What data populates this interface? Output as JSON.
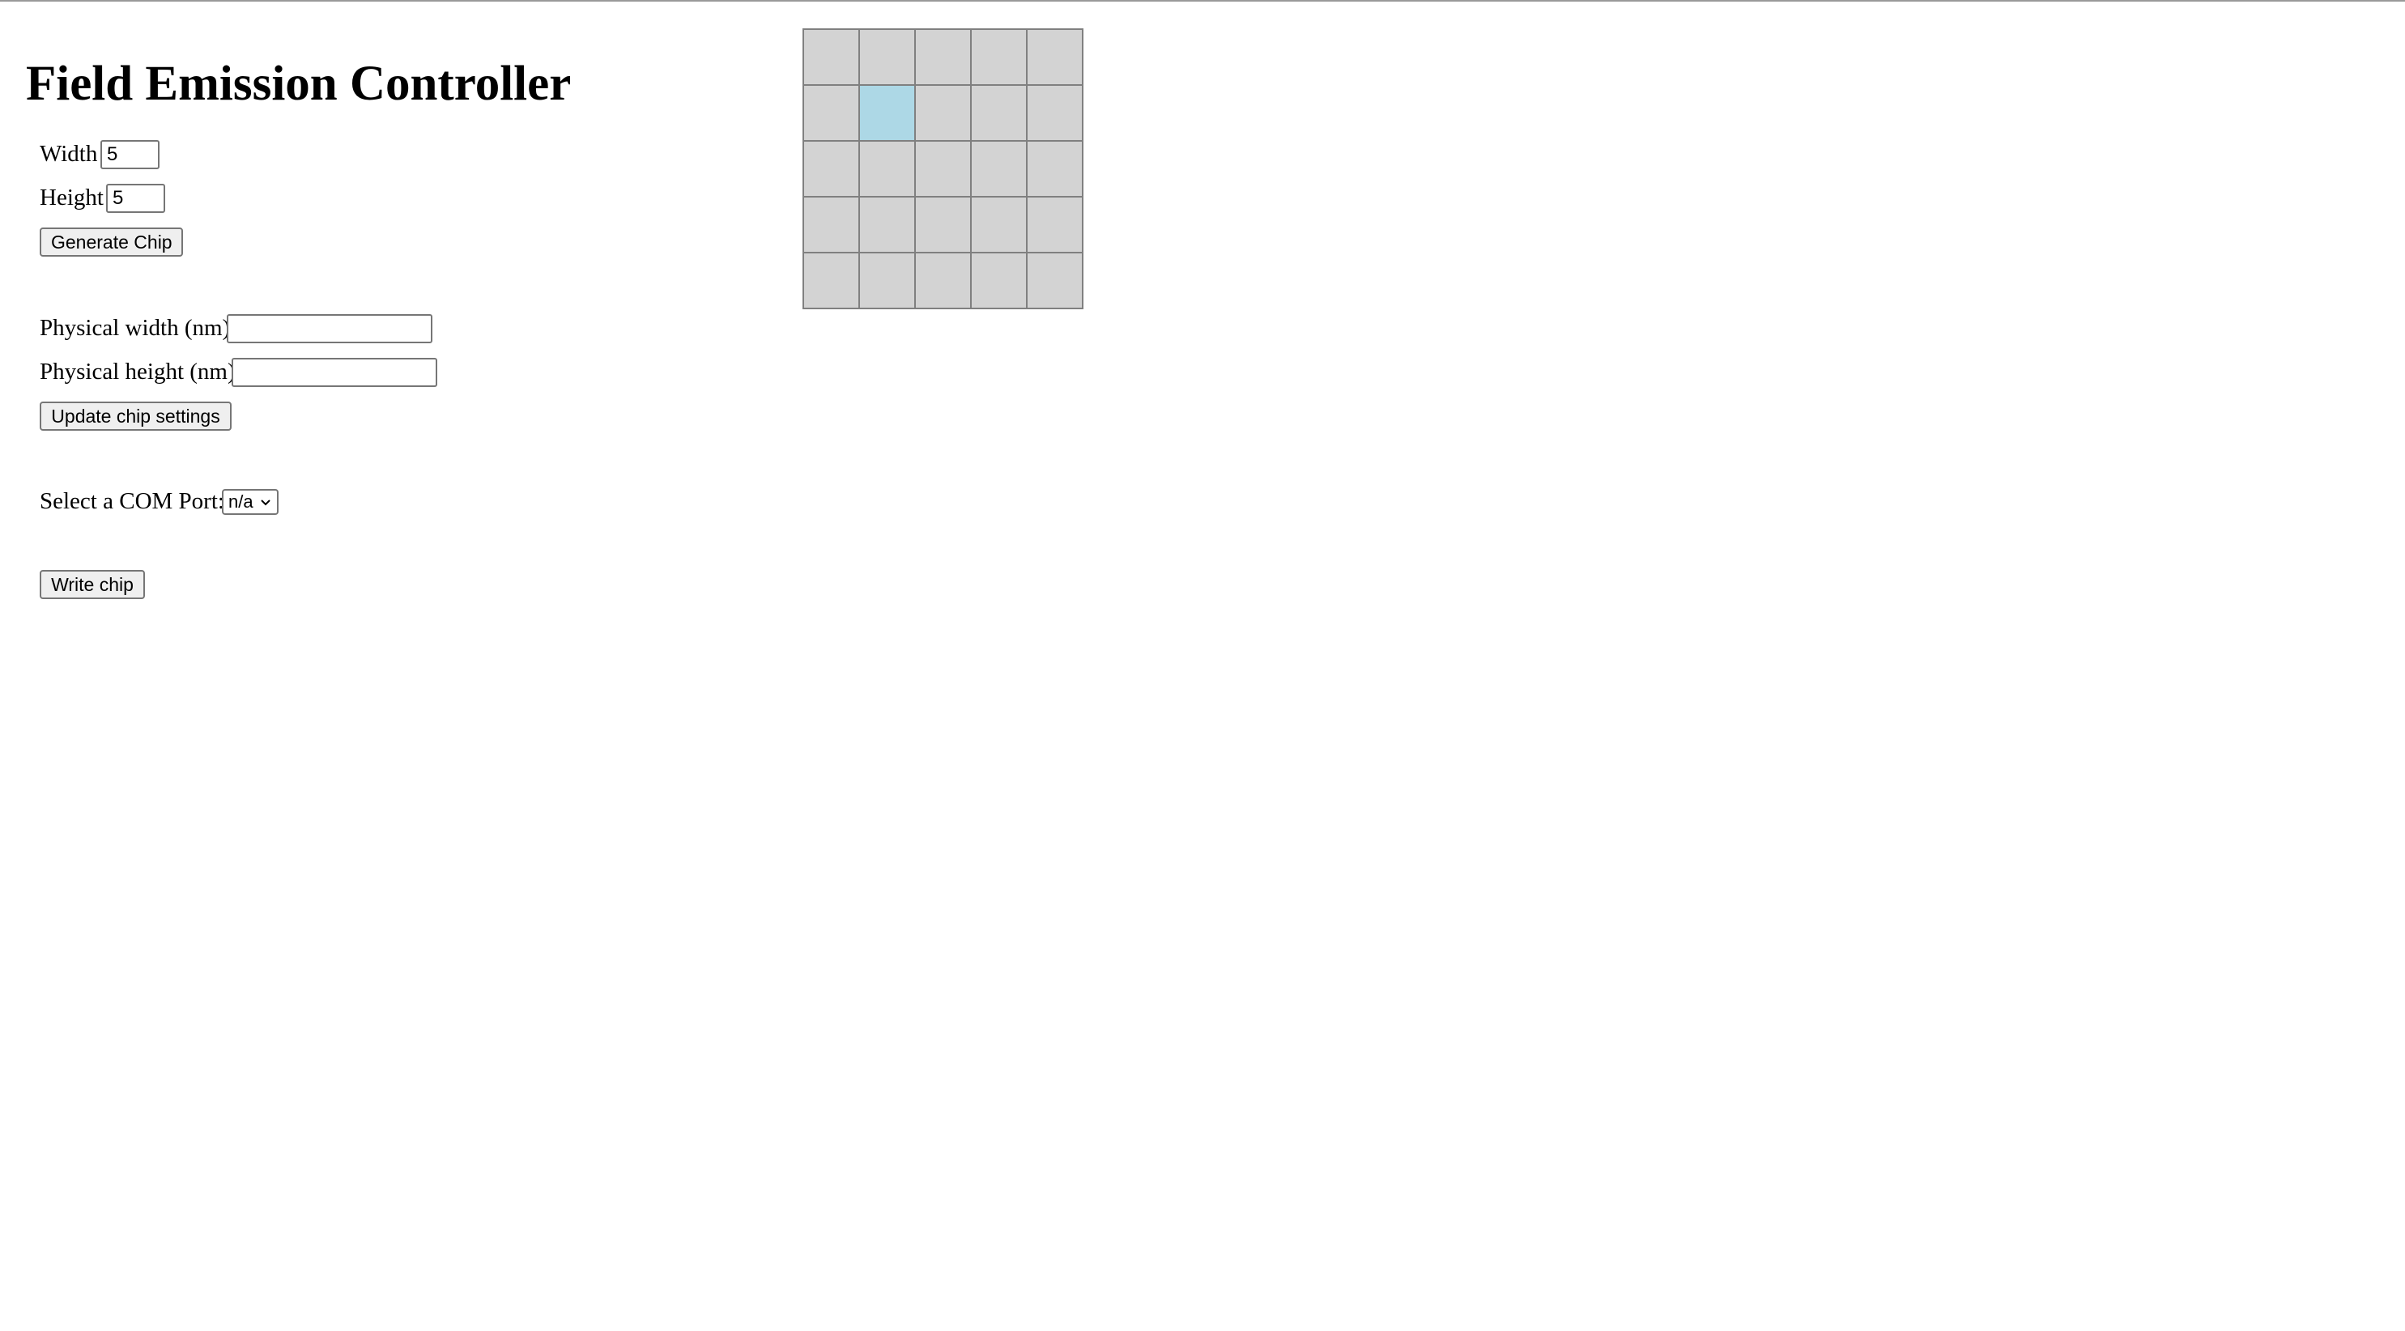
{
  "page": {
    "title": "Field Emission Controller"
  },
  "dimensions": {
    "width_label": "Width",
    "width_value": "5",
    "height_label": "Height",
    "height_value": "5",
    "generate_button": "Generate Chip"
  },
  "physical": {
    "width_label": "Physical width (nm)",
    "width_value": "",
    "height_label": "Physical height (nm)",
    "height_value": "",
    "update_button": "Update chip settings"
  },
  "com": {
    "label": "Select a COM Port:",
    "selected": "n/a",
    "icon": "chevron-down-icon"
  },
  "write": {
    "button": "Write chip"
  },
  "chip_grid": {
    "rows": 5,
    "cols": 5,
    "cell_color": "#d3d3d3",
    "selected_color": "#add8e6",
    "border_color": "#808080",
    "selected_cells": [
      [
        1,
        1
      ]
    ]
  }
}
